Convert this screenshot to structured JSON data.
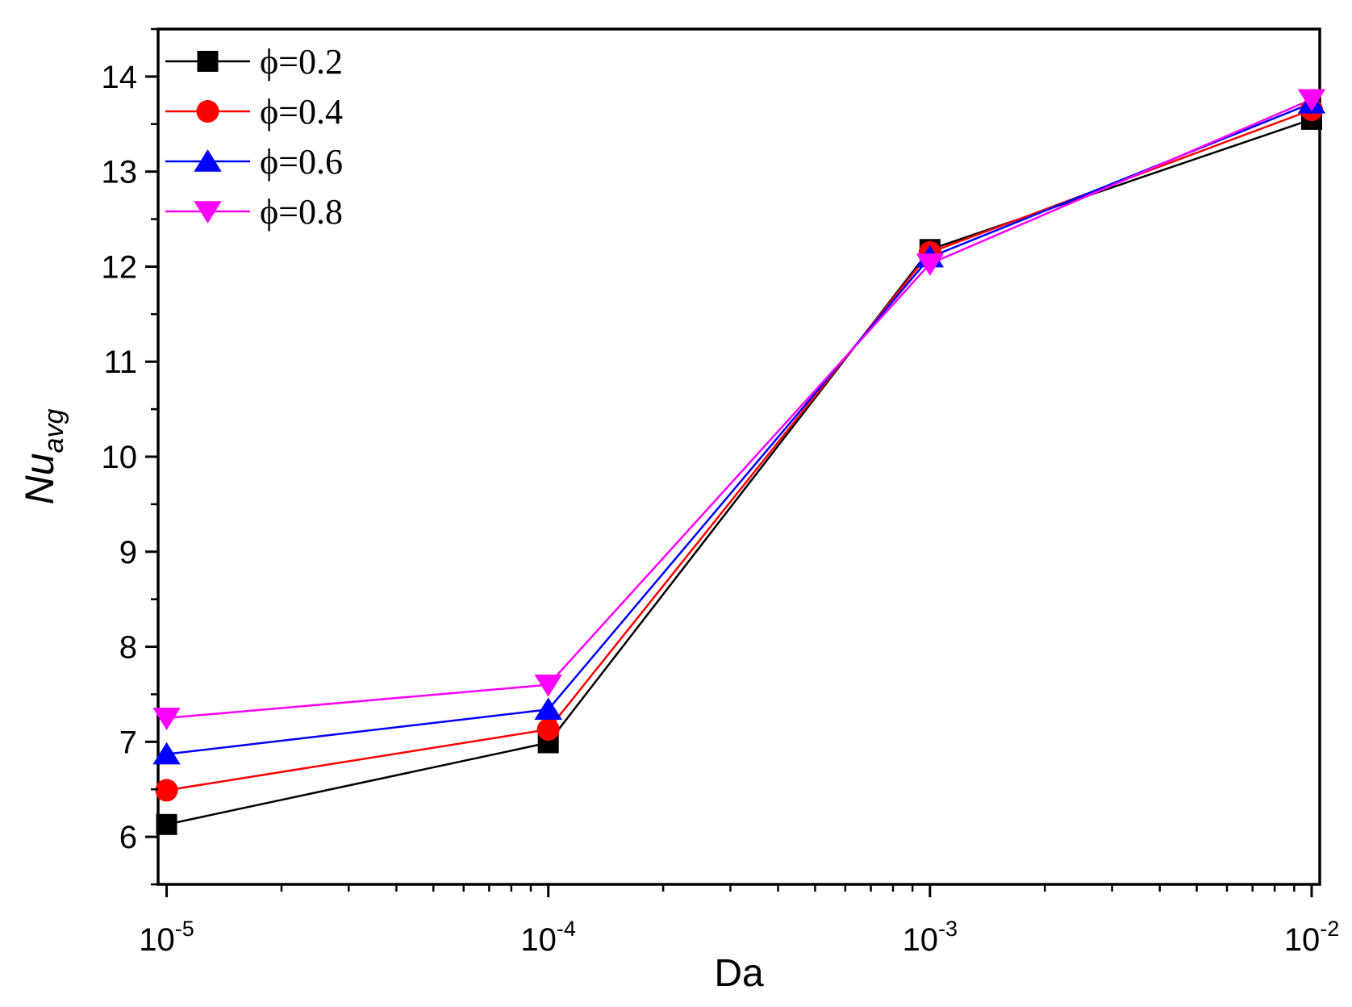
{
  "chart_data": {
    "type": "line",
    "title": "",
    "xlabel": "Da",
    "ylabel_main": "Nu",
    "ylabel_sub": "avg",
    "x_scale": "log",
    "x": [
      1e-05,
      0.0001,
      0.001,
      0.01
    ],
    "x_tick_labels": [
      {
        "base": "10",
        "exp": "-5"
      },
      {
        "base": "10",
        "exp": "-4"
      },
      {
        "base": "10",
        "exp": "-3"
      },
      {
        "base": "10",
        "exp": "-2"
      }
    ],
    "xlim": [
      9.5e-06,
      0.0105
    ],
    "ylim": [
      5.5,
      14.5
    ],
    "y_ticks": [
      6,
      7,
      8,
      9,
      10,
      11,
      12,
      13,
      14
    ],
    "y_tick_labels": [
      "6",
      "7",
      "8",
      "9",
      "10",
      "11",
      "12",
      "13",
      "14"
    ],
    "legend_position": "top-left",
    "grid": false,
    "series": [
      {
        "name": "ϕ=0.2",
        "color": "#000000",
        "marker": "square",
        "values": [
          6.13,
          6.99,
          12.18,
          13.55
        ]
      },
      {
        "name": "ϕ=0.4",
        "color": "#ff0000",
        "marker": "circle",
        "values": [
          6.49,
          7.13,
          12.15,
          13.65
        ]
      },
      {
        "name": "ϕ=0.6",
        "color": "#0000ff",
        "marker": "triangle-up",
        "values": [
          6.87,
          7.34,
          12.1,
          13.72
        ]
      },
      {
        "name": "ϕ=0.8",
        "color": "#ff00ff",
        "marker": "triangle-down",
        "values": [
          7.25,
          7.6,
          12.03,
          13.76
        ]
      }
    ]
  }
}
